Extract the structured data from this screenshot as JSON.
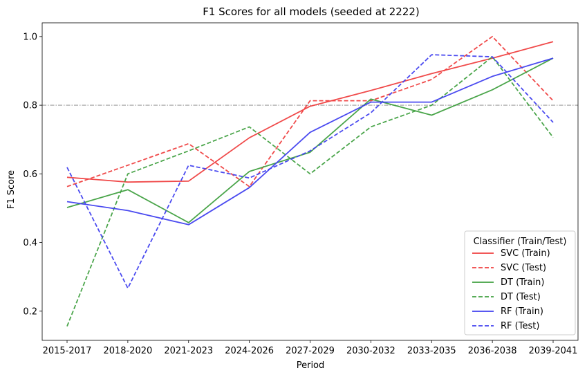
{
  "chart_data": {
    "type": "line",
    "title": "F1 Scores for all models (seeded at 2222)",
    "xlabel": "Period",
    "ylabel": "F1 Score",
    "categories": [
      "2015-2017",
      "2018-2020",
      "2021-2023",
      "2024-2026",
      "2027-2029",
      "2030-2032",
      "2033-2035",
      "2036-2038",
      "2039-2041"
    ],
    "ylim": [
      0.115,
      1.04
    ],
    "yticks": [
      0.2,
      0.4,
      0.6,
      0.8,
      1.0
    ],
    "ytick_labels": [
      "0.2",
      "0.4",
      "0.6",
      "0.8",
      "1.0"
    ],
    "reference_line": {
      "y": 0.8,
      "style": "dashdot",
      "color": "#808080"
    },
    "grid": false,
    "legend": {
      "title": "Classifier (Train/Test)",
      "placement": "lower-right"
    },
    "series": [
      {
        "name": "SVC (Train)",
        "color": "#ef4040",
        "style": "solid",
        "values": [
          0.59,
          0.576,
          0.579,
          0.705,
          0.797,
          0.843,
          0.892,
          0.937,
          0.985
        ]
      },
      {
        "name": "SVC (Test)",
        "color": "#ef4040",
        "style": "dashed",
        "values": [
          0.563,
          0.625,
          0.688,
          0.563,
          0.813,
          0.813,
          0.875,
          1.0,
          0.813
        ]
      },
      {
        "name": "DT (Train)",
        "color": "#40a040",
        "style": "solid",
        "values": [
          0.502,
          0.554,
          0.458,
          0.607,
          0.663,
          0.818,
          0.771,
          0.845,
          0.937
        ]
      },
      {
        "name": "DT (Test)",
        "color": "#40a040",
        "style": "dashed",
        "values": [
          0.156,
          0.6,
          0.667,
          0.737,
          0.6,
          0.737,
          0.8,
          0.941,
          0.706
        ]
      },
      {
        "name": "RF (Train)",
        "color": "#4040ef",
        "style": "solid",
        "values": [
          0.519,
          0.493,
          0.452,
          0.56,
          0.721,
          0.809,
          0.809,
          0.884,
          0.937
        ]
      },
      {
        "name": "RF (Test)",
        "color": "#4040ef",
        "style": "dashed",
        "values": [
          0.619,
          0.267,
          0.625,
          0.588,
          0.667,
          0.778,
          0.947,
          0.941,
          0.75
        ]
      }
    ]
  }
}
